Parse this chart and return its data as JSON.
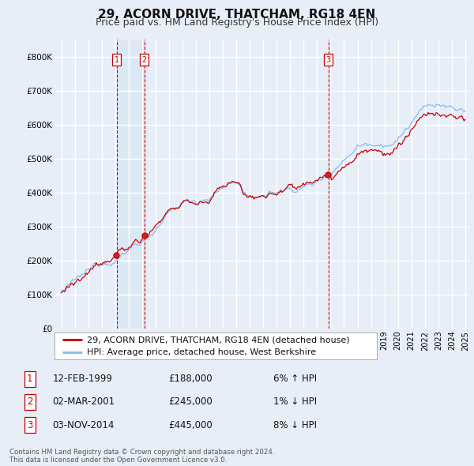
{
  "title": "29, ACORN DRIVE, THATCHAM, RG18 4EN",
  "subtitle": "Price paid vs. HM Land Registry's House Price Index (HPI)",
  "ylim": [
    0,
    850000
  ],
  "yticks": [
    0,
    100000,
    200000,
    300000,
    400000,
    500000,
    600000,
    700000,
    800000
  ],
  "ytick_labels": [
    "£0",
    "£100K",
    "£200K",
    "£300K",
    "£400K",
    "£500K",
    "£600K",
    "£700K",
    "£800K"
  ],
  "background_color": "#e8eef8",
  "plot_bg_color": "#e8eef8",
  "grid_color": "#ffffff",
  "line_color_red": "#cc0000",
  "line_color_blue": "#88bbee",
  "shade_color": "#dde8f5",
  "transactions": [
    {
      "date": 1999.12,
      "price": 188000,
      "label": "1"
    },
    {
      "date": 2001.17,
      "price": 245000,
      "label": "2"
    },
    {
      "date": 2014.84,
      "price": 445000,
      "label": "3"
    }
  ],
  "transaction_vline_color": "#cc0000",
  "legend_entries": [
    "29, ACORN DRIVE, THATCHAM, RG18 4EN (detached house)",
    "HPI: Average price, detached house, West Berkshire"
  ],
  "table_rows": [
    {
      "num": "1",
      "date": "12-FEB-1999",
      "price": "£188,000",
      "hpi": "6% ↑ HPI"
    },
    {
      "num": "2",
      "date": "02-MAR-2001",
      "price": "£245,000",
      "hpi": "1% ↓ HPI"
    },
    {
      "num": "3",
      "date": "03-NOV-2014",
      "price": "£445,000",
      "hpi": "8% ↓ HPI"
    }
  ],
  "footer": "Contains HM Land Registry data © Crown copyright and database right 2024.\nThis data is licensed under the Open Government Licence v3.0.",
  "title_fontsize": 11,
  "subtitle_fontsize": 9,
  "tick_fontsize": 7.5,
  "legend_fontsize": 8,
  "table_fontsize": 8.5
}
